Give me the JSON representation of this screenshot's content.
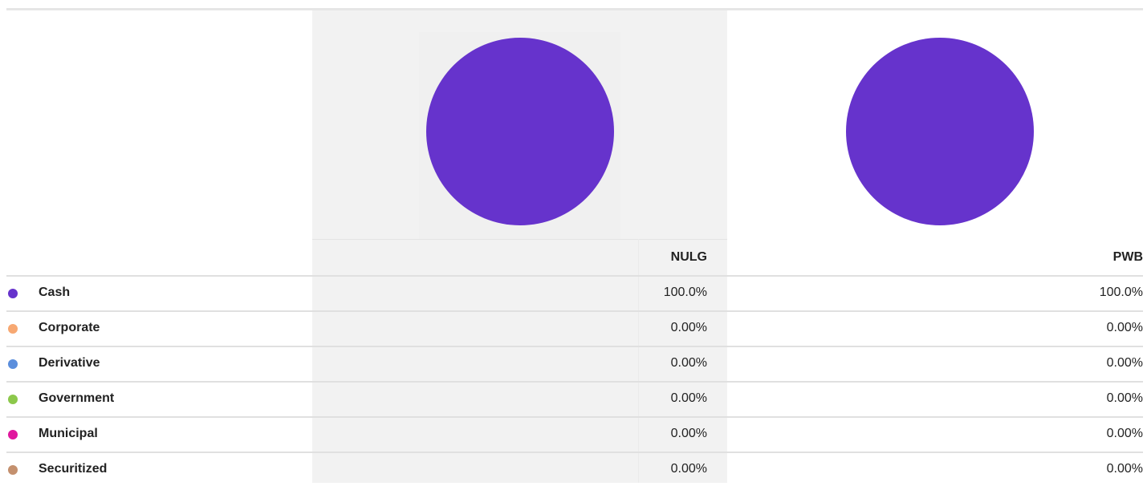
{
  "columns": [
    {
      "name": "NULG"
    },
    {
      "name": "PWB"
    }
  ],
  "rows": [
    {
      "label": "Cash",
      "color": "#6633cc",
      "values": [
        100,
        100
      ],
      "value_labels": [
        "100.0%",
        "100.0%"
      ]
    },
    {
      "label": "Corporate",
      "color": "#f7a872",
      "values": [
        0,
        0
      ],
      "value_labels": [
        "0.00%",
        "0.00%"
      ]
    },
    {
      "label": "Derivative",
      "color": "#5b8edc",
      "values": [
        0,
        0
      ],
      "value_labels": [
        "0.00%",
        "0.00%"
      ]
    },
    {
      "label": "Government",
      "color": "#8cc84b",
      "values": [
        0,
        0
      ],
      "value_labels": [
        "0.00%",
        "0.00%"
      ]
    },
    {
      "label": "Municipal",
      "color": "#e0189e",
      "values": [
        0,
        0
      ],
      "value_labels": [
        "0.00%",
        "0.00%"
      ]
    },
    {
      "label": "Securitized",
      "color": "#c4906e",
      "values": [
        0,
        0
      ],
      "value_labels": [
        "0.00%",
        "0.00%"
      ]
    }
  ]
}
